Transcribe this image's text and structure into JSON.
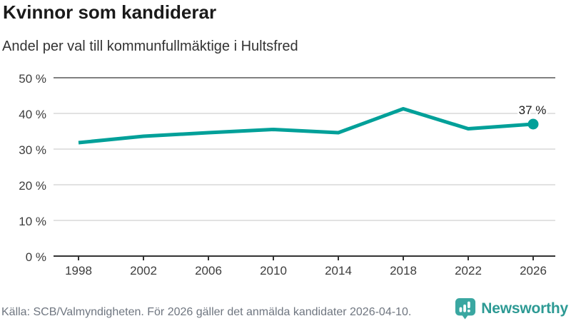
{
  "header": {
    "title": "Kvinnor som kandiderar",
    "subtitle": "Andel per val till kommunfullmäktige i Hultsfred"
  },
  "footer": {
    "source": "Källa: SCB/Valmyndigheten. För 2026 gäller det anmälda kandidater 2026-04-10.",
    "brand": "Newsworthy"
  },
  "colors": {
    "line": "#00a099",
    "point": "#00a099",
    "title": "#1a1a1a",
    "subtitle": "#333333",
    "tick_label": "#3d3d3d",
    "grid_light": "#d9d9d9",
    "grid_top": "#808080",
    "axis_line": "#333333",
    "footer_text": "#6f7680",
    "brand_icon": "#3aa7a1",
    "brand_text": "#2d9a94",
    "point_label": "#1a1a1a"
  },
  "chart_data": {
    "type": "line",
    "title": "Kvinnor som kandiderar",
    "subtitle": "Andel per val till kommunfullmäktige i Hultsfred",
    "x": [
      1998,
      2002,
      2006,
      2010,
      2014,
      2018,
      2022,
      2026
    ],
    "values": [
      31.8,
      33.6,
      34.6,
      35.5,
      34.6,
      41.3,
      35.7,
      37
    ],
    "xlabel": "",
    "ylabel": "",
    "ylim": [
      0,
      50
    ],
    "yticks": [
      0,
      10,
      20,
      30,
      40,
      50
    ],
    "ytick_suffix": " %",
    "grid": true,
    "legend_position": "none",
    "last_point_label": "37 %"
  }
}
